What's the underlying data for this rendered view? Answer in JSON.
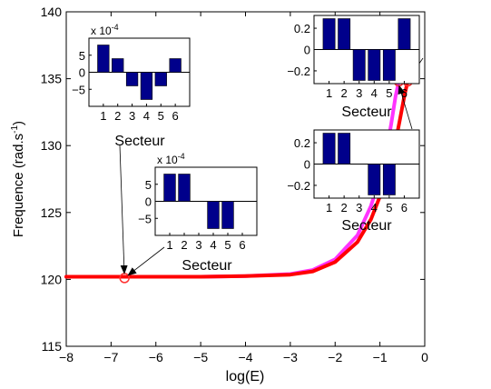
{
  "colors": {
    "curve_main": "#ff0000",
    "curve_alt": "#ff33ff",
    "marker": "#ff3333",
    "bar": "#00008b",
    "axis": "#000000"
  },
  "chart_data": {
    "type": "line",
    "title": "",
    "xlabel": "log(E)",
    "ylabel_main": "Frequence (rad.s",
    "ylabel_sup": "-1",
    "ylabel_close": ")",
    "xlim": [
      -8,
      0
    ],
    "ylim": [
      115,
      140
    ],
    "xticks": [
      -8,
      -7,
      -6,
      -5,
      -4,
      -3,
      -2,
      -1,
      0
    ],
    "yticks": [
      115,
      120,
      125,
      130,
      135,
      140
    ],
    "grid": false,
    "series": [
      {
        "color_key": "curve_alt",
        "x": [
          -8,
          -6,
          -5,
          -4,
          -3,
          -2.5,
          -2,
          -1.5,
          -1.2,
          -1.0,
          -0.85,
          -0.75,
          -0.65,
          -0.58
        ],
        "y": [
          120.2,
          120.2,
          120.2,
          120.25,
          120.4,
          120.7,
          121.5,
          123.3,
          125.5,
          127.6,
          129.7,
          131.6,
          133.7,
          134.8
        ]
      },
      {
        "color_key": "curve_main",
        "x": [
          -8,
          -6,
          -5,
          -4,
          -3,
          -2.5,
          -2,
          -1.5,
          -1.2,
          -1.0,
          -0.8,
          -0.65,
          -0.55,
          -0.45,
          -0.38
        ],
        "y": [
          120.2,
          120.2,
          120.2,
          120.25,
          120.35,
          120.6,
          121.3,
          122.8,
          124.5,
          126.2,
          128.3,
          130.3,
          132.0,
          133.8,
          134.8
        ]
      }
    ],
    "markers": [
      {
        "x": -6.7,
        "y": 120.1
      },
      {
        "x": -0.58,
        "y": 134.8
      },
      {
        "x": -0.38,
        "y": 134.8
      }
    ],
    "insets": [
      {
        "id": "inset-1",
        "exponent_base": "x 10",
        "exponent_power": "-4",
        "xlabel": "Secteur",
        "categories": [
          "1",
          "2",
          "3",
          "4",
          "5",
          "6"
        ],
        "values": [
          0.0008,
          0.0004,
          -0.0004,
          -0.0008,
          -0.0004,
          0.0004
        ],
        "ylim": [
          -0.001,
          0.001
        ],
        "ytick_values": [
          0.0005,
          0,
          -0.0005
        ],
        "ytick_labels": [
          "5",
          "0",
          "−5"
        ],
        "arrow_to": {
          "x": -6.7,
          "y": 120.1
        }
      },
      {
        "id": "inset-2",
        "exponent_base": "x 10",
        "exponent_power": "-4",
        "xlabel": "Secteur",
        "categories": [
          "1",
          "2",
          "3",
          "4",
          "5",
          "6"
        ],
        "values": [
          0.0008,
          0.0008,
          0,
          -0.0008,
          -0.0008,
          0
        ],
        "ylim": [
          -0.001,
          0.001
        ],
        "ytick_values": [
          0.0005,
          0,
          -0.0005
        ],
        "ytick_labels": [
          "5",
          "0",
          "−5"
        ],
        "arrow_to": {
          "x": -6.7,
          "y": 120.1
        }
      },
      {
        "id": "inset-3",
        "exponent_base": "",
        "exponent_power": "",
        "xlabel": "Secteur",
        "categories": [
          "1",
          "2",
          "3",
          "4",
          "5",
          "6"
        ],
        "values": [
          0.29,
          0.29,
          -0.29,
          -0.29,
          -0.29,
          0.29
        ],
        "ylim": [
          -0.32,
          0.32
        ],
        "ytick_values": [
          0.2,
          0,
          -0.2
        ],
        "ytick_labels": [
          "0.2",
          "0",
          "−0.2"
        ],
        "arrow_to": {
          "x": -0.4,
          "y": 134.8
        }
      },
      {
        "id": "inset-4",
        "exponent_base": "",
        "exponent_power": "",
        "xlabel": "Secteur",
        "categories": [
          "1",
          "2",
          "3",
          "4",
          "5",
          "6"
        ],
        "values": [
          0.29,
          0.29,
          0,
          -0.29,
          -0.29,
          0
        ],
        "ylim": [
          -0.32,
          0.32
        ],
        "ytick_values": [
          0.2,
          0,
          -0.2
        ],
        "ytick_labels": [
          "0.2",
          "0",
          "−0.2"
        ],
        "arrow_to": {
          "x": -0.6,
          "y": 134.8
        }
      }
    ]
  }
}
